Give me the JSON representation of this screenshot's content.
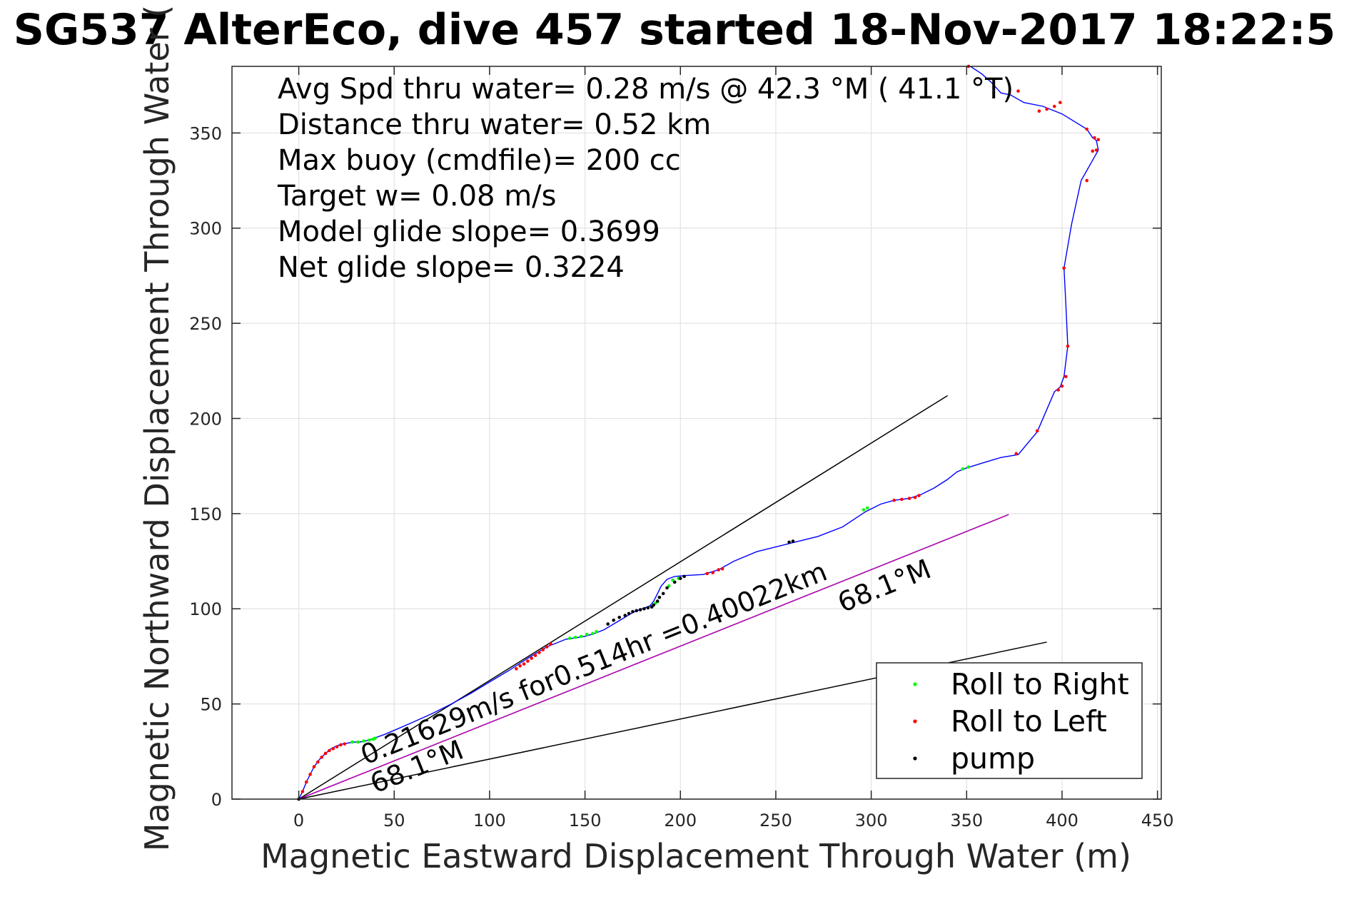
{
  "chart_data": {
    "type": "line",
    "title": "SG537 AlterEco, dive 457 started 18-Nov-2017 18:22:5",
    "xlabel": "Magnetic Eastward Displacement Through Water (m)",
    "ylabel": "Magnetic Northward Displacement Through Water (",
    "xlim": [
      -35,
      452
    ],
    "ylim": [
      0,
      385
    ],
    "xticks": [
      0,
      50,
      100,
      150,
      200,
      250,
      300,
      350,
      400,
      450
    ],
    "yticks": [
      0,
      50,
      100,
      150,
      200,
      250,
      300,
      350
    ],
    "grid": true,
    "legend_position": "bottom-right",
    "info_lines": [
      "Avg Spd thru water=  0.28 m/s @  42.3 °M ( 41.1 °T)",
      "Distance thru water=  0.52 km",
      "Max buoy (cmdfile)= 200 cc",
      "Target w= 0.08 m/s",
      "Model glide slope= 0.3699",
      "Net glide slope= 0.3224"
    ],
    "annotations": [
      {
        "text": "0.21629m/s for0.514hr =0.40022km",
        "x": 35,
        "y": 18,
        "angle_deg": 21.9
      },
      {
        "text": "68.1°M",
        "x": 40,
        "y": 3,
        "angle_deg": 21.9
      },
      {
        "text": "68.1°M",
        "x": 285,
        "y": 98,
        "angle_deg": 21.9
      }
    ],
    "reference_lines": [
      {
        "x": [
          0,
          340
        ],
        "y": [
          0,
          212
        ],
        "color": "#000000"
      },
      {
        "x": [
          0,
          372
        ],
        "y": [
          0,
          149.5
        ],
        "color": "#000000"
      },
      {
        "x": [
          0,
          372
        ],
        "y": [
          0,
          149.5
        ],
        "color": "#cc00cc"
      },
      {
        "x": [
          0,
          392
        ],
        "y": [
          0,
          82.5
        ],
        "color": "#000000"
      }
    ],
    "track": {
      "color": "#0000ff",
      "x": [
        0,
        2,
        4,
        6,
        8,
        11,
        14,
        17,
        20,
        23,
        26,
        29,
        32,
        35,
        38,
        45,
        52,
        60,
        70,
        80,
        90,
        100,
        110,
        120,
        130,
        140,
        150,
        155,
        160,
        165,
        170,
        175,
        180,
        184,
        186,
        188,
        190,
        193,
        197,
        203,
        212,
        220,
        228,
        240,
        258,
        272,
        285,
        297,
        305,
        312,
        320,
        326,
        333,
        340,
        345,
        350,
        358,
        368,
        377,
        387,
        396,
        399,
        401,
        403,
        402,
        401,
        405,
        410,
        419,
        418,
        416,
        413,
        400,
        390,
        380,
        373,
        368,
        363,
        358,
        352
      ],
      "y": [
        0,
        4,
        9,
        13,
        17,
        21,
        24,
        26.5,
        28,
        29,
        29.5,
        30,
        30,
        30.5,
        31.5,
        34,
        37,
        40.5,
        45,
        50,
        55.5,
        61.5,
        67.5,
        74,
        80,
        84,
        85.5,
        87,
        89,
        92,
        95,
        98,
        100,
        101.5,
        104,
        108,
        112,
        115.5,
        117,
        117.5,
        118,
        120.5,
        125,
        130,
        134.5,
        138,
        143,
        151,
        155,
        157,
        158,
        160,
        163.5,
        168,
        172,
        174,
        176.5,
        179.5,
        181,
        193,
        214,
        216.5,
        222,
        238,
        260,
        279,
        302,
        325,
        341,
        346,
        347.5,
        352,
        360,
        364,
        366,
        370,
        371,
        376.5,
        381,
        385
      ]
    },
    "series": [
      {
        "name": "Roll to Right",
        "color": "#00ff00",
        "x": [
          28,
          31,
          34,
          37,
          39,
          40,
          142,
          145,
          148,
          151,
          154,
          156,
          185,
          187,
          189,
          194,
          196,
          199,
          296,
          298,
          348,
          351
        ],
        "y": [
          30,
          30,
          30.5,
          31,
          31.5,
          32,
          84.5,
          85,
          85.5,
          86.5,
          87,
          88,
          101,
          103,
          106,
          112,
          115,
          116,
          152,
          153,
          173.5,
          174.5
        ]
      },
      {
        "name": "Roll to Left",
        "color": "#ff0000",
        "x": [
          2,
          4,
          6,
          8,
          10,
          12,
          14,
          16,
          18,
          20,
          22,
          24,
          114,
          116,
          118,
          120,
          122,
          124,
          126,
          128,
          130,
          132,
          214,
          217,
          220,
          222,
          312,
          316,
          320,
          323,
          325,
          376,
          387,
          398,
          400,
          402,
          403,
          401,
          413,
          416,
          418,
          419,
          417,
          413,
          399,
          396,
          392,
          388,
          377,
          351
        ],
        "y": [
          4,
          9,
          13,
          17,
          19.5,
          22,
          24,
          25.5,
          26.5,
          27.5,
          28.5,
          29,
          68.5,
          70,
          71,
          72.5,
          74,
          75.5,
          77,
          78.5,
          80,
          81.5,
          118.5,
          119,
          120.5,
          121,
          157,
          157.5,
          158,
          158.5,
          159.5,
          181.5,
          193.5,
          215,
          217,
          222,
          238,
          279,
          325,
          340.5,
          341,
          346.5,
          347.5,
          352,
          366,
          364,
          362.5,
          361.5,
          372,
          385
        ]
      },
      {
        "name": "pump",
        "color": "#000000",
        "x": [
          0,
          162,
          165,
          168,
          171,
          173,
          175,
          177,
          179,
          181,
          183,
          185,
          186,
          188,
          189,
          191,
          193,
          197,
          200,
          202,
          257,
          259
        ],
        "y": [
          0,
          92,
          94,
          95.5,
          96.5,
          97.5,
          98.5,
          99,
          99.5,
          100,
          100.5,
          101,
          102,
          104,
          106,
          108,
          111,
          114,
          116,
          117,
          135,
          135.5
        ]
      }
    ]
  }
}
